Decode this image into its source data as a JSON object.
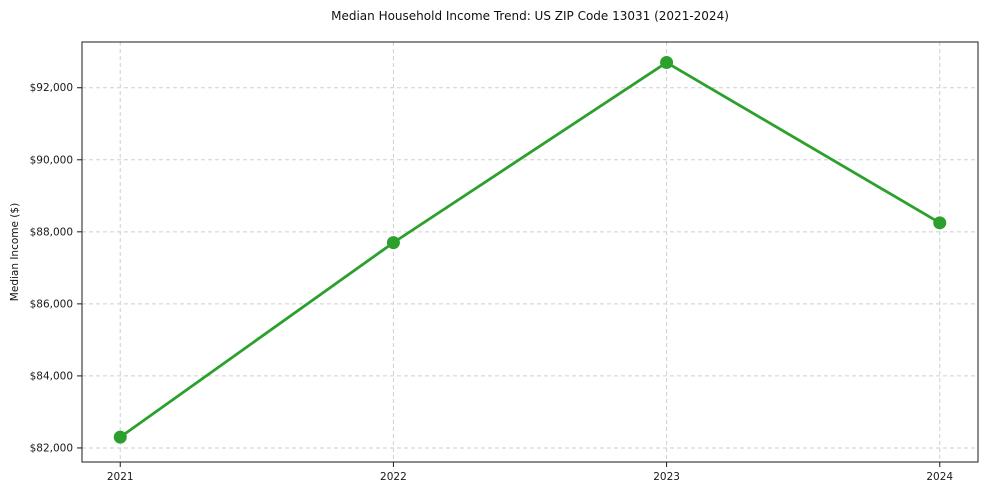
{
  "chart_data": {
    "type": "line",
    "title": "Median Household Income Trend: US ZIP Code 13031 (2021-2024)",
    "xlabel": "",
    "ylabel": "Median Income ($)",
    "x": [
      2021,
      2022,
      2023,
      2024
    ],
    "series": [
      {
        "name": "Median Household Income",
        "values": [
          82300,
          87700,
          92700,
          88250
        ]
      }
    ],
    "xlim": [
      2020.86,
      2024.14
    ],
    "ylim": [
      81610,
      93270
    ],
    "xticks": {
      "values": [
        2021,
        2022,
        2023,
        2024
      ],
      "labels": [
        "2021",
        "2022",
        "2023",
        "2024"
      ]
    },
    "yticks": {
      "values": [
        82000,
        84000,
        86000,
        88000,
        90000,
        92000
      ],
      "labels": [
        "$82,000",
        "$84,000",
        "$86,000",
        "$88,000",
        "$90,000",
        "$92,000"
      ]
    },
    "grid": true,
    "grid_style": "dashed",
    "legend_position": "none",
    "colors": {
      "line": "#2ca02c",
      "marker": "#2ca02c",
      "grid": "#cfcfcf",
      "spine": "#1a1a1a",
      "tick_text": "#1a1a1a"
    }
  }
}
